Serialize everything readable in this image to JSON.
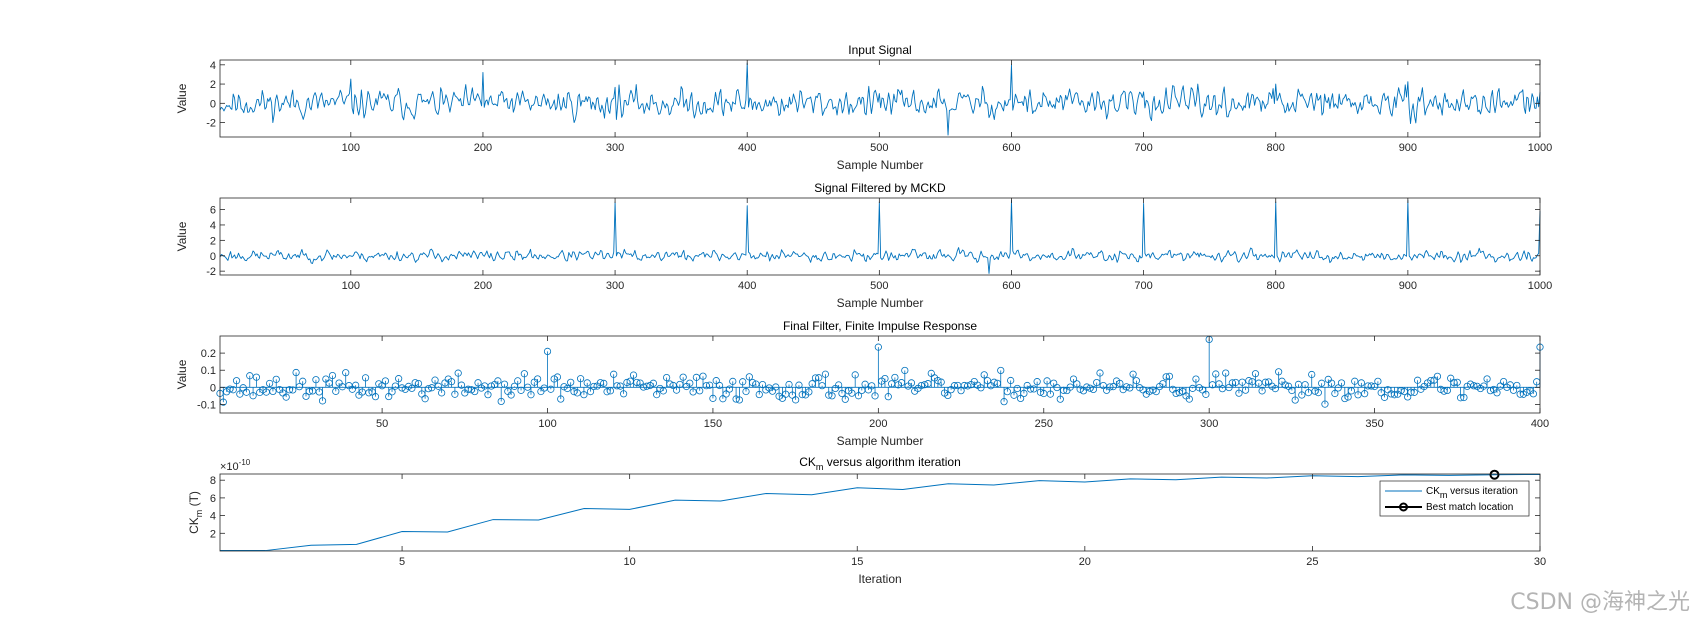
{
  "colors": {
    "series": "#0072BD",
    "axis": "#262626",
    "marker": "#000000",
    "watermark": "#b4b4b4"
  },
  "watermark": "CSDN @海神之光",
  "chart_data": [
    {
      "type": "line",
      "title": "Input Signal",
      "xlabel": "Sample Number",
      "ylabel": "Value",
      "xlim": [
        1,
        1000
      ],
      "ylim": [
        -3.5,
        4.5
      ],
      "xticks": [
        100,
        200,
        300,
        400,
        500,
        600,
        700,
        800,
        900,
        1000
      ],
      "yticks": [
        -2,
        0,
        2,
        4
      ],
      "n_points": 1000,
      "noise_amplitude": 0.9,
      "seed": 11,
      "impulse_period": 100,
      "impulses": [
        [
          200,
          3.2
        ],
        [
          400,
          4.2
        ],
        [
          600,
          4.0
        ],
        [
          800,
          2.0
        ]
      ],
      "min_point": [
        552,
        -3.3
      ]
    },
    {
      "type": "line",
      "title": "Signal Filtered by MCKD",
      "xlabel": "Sample Number",
      "ylabel": "Value",
      "xlim": [
        1,
        1000
      ],
      "ylim": [
        -2.5,
        7.5
      ],
      "xticks": [
        100,
        200,
        300,
        400,
        500,
        600,
        700,
        800,
        900,
        1000
      ],
      "yticks": [
        -2,
        0,
        2,
        4,
        6
      ],
      "n_points": 1000,
      "noise_amplitude": 0.45,
      "seed": 23,
      "impulses": [
        [
          300,
          7.0
        ],
        [
          400,
          6.5
        ],
        [
          500,
          7.0
        ],
        [
          600,
          7.2
        ],
        [
          700,
          6.8
        ],
        [
          800,
          7.0
        ],
        [
          900,
          7.2
        ],
        [
          1000,
          5.8
        ]
      ],
      "min_point": [
        583,
        -2.3
      ]
    },
    {
      "type": "stem",
      "title": "Final Filter, Finite Impulse Response",
      "xlabel": "Sample Number",
      "ylabel": "Value",
      "xlim": [
        1,
        400
      ],
      "ylim": [
        -0.15,
        0.3
      ],
      "xticks": [
        50,
        100,
        150,
        200,
        250,
        300,
        350,
        400
      ],
      "yticks": [
        -0.1,
        0,
        0.1,
        0.2
      ],
      "n_points": 400,
      "noise_amplitude": 0.045,
      "seed": 37,
      "peaks": [
        [
          100,
          0.21
        ],
        [
          200,
          0.235
        ],
        [
          300,
          0.28
        ],
        [
          400,
          0.235
        ]
      ]
    },
    {
      "type": "line",
      "title_main": "CK",
      "title_sub": "m",
      "title_rest": " versus algorithm iteration",
      "xlabel": "Iteration",
      "ylabel_main": "CK",
      "ylabel_sub": "m",
      "ylabel_rest": " (T)",
      "exponent_base": "×10",
      "exponent_power": "-10",
      "xlim": [
        1,
        30
      ],
      "ylim": [
        0,
        8.7
      ],
      "xticks": [
        5,
        10,
        15,
        20,
        25,
        30
      ],
      "yticks": [
        2,
        4,
        6,
        8
      ],
      "x": [
        1,
        2,
        3,
        4,
        5,
        6,
        7,
        8,
        9,
        10,
        11,
        12,
        13,
        14,
        15,
        16,
        17,
        18,
        19,
        20,
        21,
        22,
        23,
        24,
        25,
        26,
        27,
        28,
        29,
        30
      ],
      "series": [
        {
          "name": "CK_m versus iteration",
          "values": [
            0.05,
            0.05,
            0.65,
            0.75,
            2.2,
            2.15,
            3.55,
            3.5,
            4.8,
            4.7,
            5.75,
            5.65,
            6.5,
            6.35,
            7.15,
            6.95,
            7.6,
            7.45,
            7.95,
            7.8,
            8.15,
            8.05,
            8.35,
            8.25,
            8.5,
            8.4,
            8.6,
            8.55,
            8.62,
            8.65
          ]
        }
      ],
      "best_match": {
        "x": 29,
        "y": 8.62
      },
      "legend": {
        "position": "right",
        "entry1_main": "CK",
        "entry1_sub": "m",
        "entry1_rest": " versus iteration",
        "entry2": "Best match location"
      }
    }
  ]
}
